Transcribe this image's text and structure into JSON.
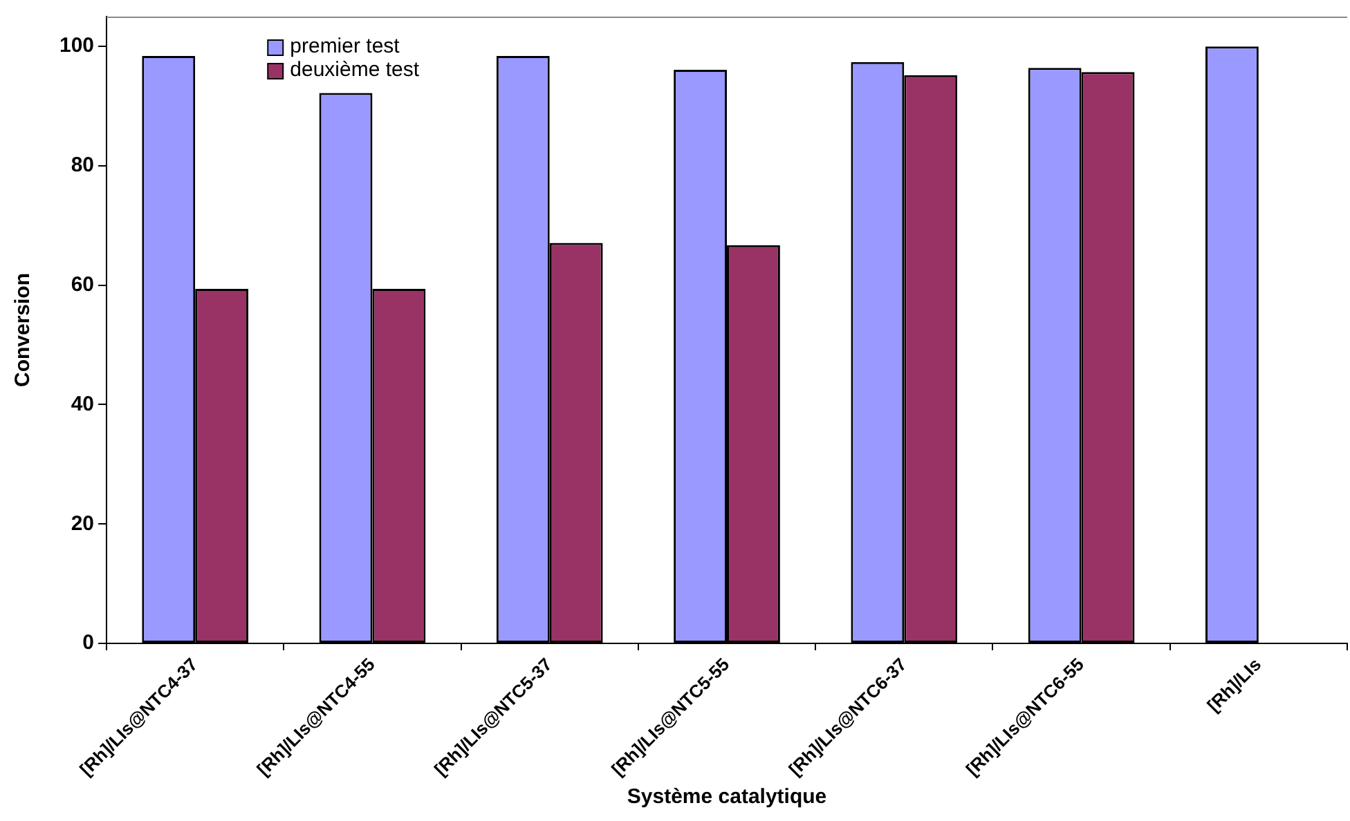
{
  "chart_data": {
    "type": "bar",
    "xlabel": "Système catalytique",
    "ylabel": "Conversion",
    "categories": [
      "[Rh]/LIs@NTC4-37",
      "[Rh]/LIs@NTC4-55",
      "[Rh]/LIs@NTC5-37",
      "[Rh]/LIs@NTC5-55",
      "[Rh]/LIs@NTC6-37",
      "[Rh]/LIs@NTC6-55",
      "[Rh]/LIs"
    ],
    "series": [
      {
        "name": "premier test",
        "color": "#9999ff",
        "values": [
          98.4,
          92.2,
          98.4,
          96.1,
          97.4,
          96.4,
          100
        ]
      },
      {
        "name": "deuxième test",
        "color": "#993366",
        "values": [
          59.4,
          59.4,
          67.1,
          66.7,
          95.2,
          95.7,
          null
        ]
      }
    ],
    "ylim": [
      0,
      105
    ],
    "yticks": [
      0,
      20,
      40,
      60,
      80,
      100
    ],
    "grid": false,
    "legend": "top left"
  }
}
